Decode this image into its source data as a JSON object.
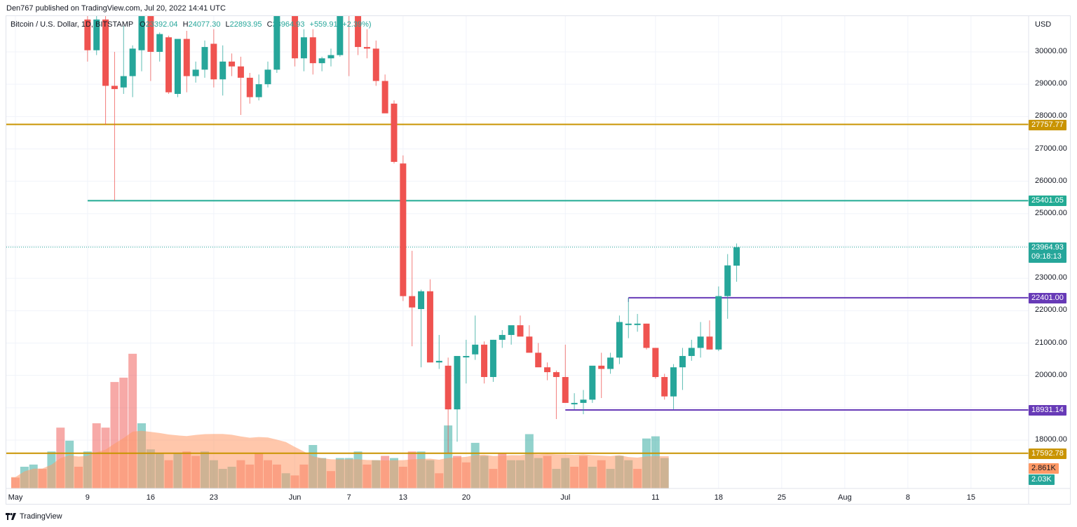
{
  "header": {
    "published": "Den767 published on TradingView.com, Jul 20, 2022 14:41 UTC"
  },
  "legend": {
    "symbol": "Bitcoin / U.S. Dollar, 1D, BITSTAMP",
    "open_label": "O",
    "open": "23392.04",
    "high_label": "H",
    "high": "24077.30",
    "low_label": "L",
    "low": "22893.95",
    "close_label": "C",
    "close": "23964.93",
    "change": "+559.91 (+2.39%)"
  },
  "price_axis": {
    "currency": "USD",
    "ticks": [
      "30000.00",
      "29000.00",
      "28000.00",
      "27000.00",
      "26000.00",
      "25000.00",
      "23000.00",
      "22000.00",
      "21000.00",
      "20000.00",
      "18000.00"
    ]
  },
  "tags": [
    {
      "label": "27757.77",
      "color": "#c99400",
      "price": 27757.77
    },
    {
      "label": "25401.05",
      "color": "#22ab94",
      "price": 25401.05
    },
    {
      "label": "23964.93",
      "color": "#26a69a",
      "price": 23964.93,
      "sub": "09:18:13"
    },
    {
      "label": "22401.00",
      "color": "#673ab7",
      "price": 22401.0
    },
    {
      "label": "18931.14",
      "color": "#673ab7",
      "price": 18931.14
    },
    {
      "label": "17592.78",
      "color": "#c99400",
      "price": 17592.78
    },
    {
      "label": "2.861K",
      "color": "#ff9966",
      "volume": true
    },
    {
      "label": "2.03K",
      "color": "#26a69a",
      "volume": true
    }
  ],
  "time_axis": {
    "labels": [
      "May",
      "9",
      "16",
      "23",
      "Jun",
      "7",
      "13",
      "20",
      "Jul",
      "11",
      "18",
      "25",
      "Aug",
      "8",
      "15"
    ]
  },
  "footer": {
    "brand": "TradingView"
  },
  "colors": {
    "up": "#26a69a",
    "down": "#ef5350",
    "vol_ma": "#ff9966"
  },
  "chart_data": {
    "type": "candlestick",
    "title": "Bitcoin / U.S. Dollar, 1D, BITSTAMP",
    "ylabel": "USD",
    "ylim": [
      17300,
      31500
    ],
    "x_start": "May 1, 2022",
    "horizontal_levels": [
      {
        "price": 27757.77,
        "color": "#c99400"
      },
      {
        "price": 25401.05,
        "color": "#22ab94"
      },
      {
        "price": 22401.0,
        "color": "#673ab7",
        "from": "Jul 8"
      },
      {
        "price": 18931.14,
        "color": "#673ab7",
        "from": "Jul 1"
      },
      {
        "price": 17592.78,
        "color": "#c99400"
      }
    ],
    "last_price": 23964.93,
    "countdown": "09:18:13",
    "ohlc": [
      [
        "May 9",
        31000,
        31500,
        29700,
        30050
      ],
      [
        "May 10",
        30050,
        32500,
        29900,
        31000
      ],
      [
        "May 11",
        31000,
        32100,
        27750,
        28950
      ],
      [
        "May 12",
        28950,
        30000,
        25400,
        28850
      ],
      [
        "May 13",
        28900,
        30800,
        28700,
        29250
      ],
      [
        "May 14",
        29250,
        30200,
        28600,
        30100
      ],
      [
        "May 15",
        30050,
        31900,
        29400,
        31300
      ],
      [
        "May 16",
        31300,
        31400,
        29100,
        30000
      ],
      [
        "May 17",
        30000,
        30600,
        29700,
        30550
      ],
      [
        "May 18",
        30450,
        30500,
        28700,
        28750
      ],
      [
        "May 19",
        28700,
        30200,
        28600,
        30400
      ],
      [
        "May 20",
        30400,
        30650,
        28750,
        29250
      ],
      [
        "May 21",
        29250,
        29700,
        29050,
        29450
      ],
      [
        "May 22",
        29450,
        30350,
        29200,
        30150
      ],
      [
        "May 23",
        30250,
        30700,
        28900,
        29150
      ],
      [
        "May 24",
        29150,
        30200,
        28650,
        29700
      ],
      [
        "May 25",
        29700,
        29950,
        29250,
        29550
      ],
      [
        "May 26",
        29550,
        29850,
        28050,
        29200
      ],
      [
        "May 27",
        29200,
        29350,
        28400,
        28600
      ],
      [
        "May 28",
        28600,
        29300,
        28500,
        29000
      ],
      [
        "May 29",
        29000,
        29700,
        28900,
        29450
      ],
      [
        "May 30",
        29450,
        32200,
        29350,
        31750
      ],
      [
        "May 31",
        31750,
        32350,
        31200,
        31750
      ],
      [
        "Jun 1",
        31750,
        31900,
        29550,
        29800
      ],
      [
        "Jun 2",
        29800,
        30700,
        29400,
        30450
      ],
      [
        "Jun 3",
        30450,
        30700,
        29300,
        29650
      ],
      [
        "Jun 4",
        29650,
        29850,
        29400,
        29800
      ],
      [
        "Jun 5",
        29800,
        30100,
        29550,
        29900
      ],
      [
        "Jun 6",
        29900,
        31700,
        29850,
        31350
      ],
      [
        "Jun 7",
        31350,
        31600,
        29250,
        31150
      ],
      [
        "Jun 8",
        31150,
        31400,
        29900,
        30150
      ],
      [
        "Jun 9",
        30150,
        30700,
        29800,
        30100
      ],
      [
        "Jun 10",
        30100,
        30350,
        28950,
        29100
      ],
      [
        "Jun 11",
        29100,
        29300,
        28200,
        28100
      ],
      [
        "Jun 12",
        28400,
        28500,
        26550,
        26600
      ],
      [
        "Jun 13",
        26550,
        26800,
        22300,
        22450
      ],
      [
        "Jun 14",
        22450,
        23850,
        20900,
        22100
      ],
      [
        "Jun 15",
        22050,
        22650,
        20250,
        22600
      ],
      [
        "Jun 16",
        22600,
        22970,
        20500,
        20400
      ],
      [
        "Jun 17",
        20400,
        21250,
        20200,
        20450
      ],
      [
        "Jun 18",
        20300,
        20550,
        17600,
        18950
      ],
      [
        "Jun 19",
        18950,
        20600,
        17950,
        20600
      ],
      [
        "Jun 20",
        20600,
        21100,
        19750,
        20600
      ],
      [
        "Jun 21",
        20650,
        21850,
        20480,
        20950
      ],
      [
        "Jun 22",
        20950,
        21050,
        19750,
        19950
      ],
      [
        "Jun 23",
        19950,
        21100,
        19800,
        21100
      ],
      [
        "Jun 24",
        21100,
        21400,
        20850,
        21250
      ],
      [
        "Jun 25",
        21250,
        21500,
        20950,
        21550
      ],
      [
        "Jun 26",
        21550,
        21850,
        21350,
        21200
      ],
      [
        "Jun 27",
        21200,
        21550,
        20850,
        20700
      ],
      [
        "Jun 28",
        20700,
        21000,
        20500,
        20250
      ],
      [
        "Jun 29",
        20250,
        20400,
        19850,
        20100
      ],
      [
        "Jun 30",
        20100,
        20150,
        18650,
        19950
      ],
      [
        "Jul 1",
        19950,
        20950,
        19150,
        19150
      ],
      [
        "Jul 2",
        19150,
        19450,
        18950,
        19150
      ],
      [
        "Jul 3",
        19150,
        19550,
        18800,
        19250
      ],
      [
        "Jul 4",
        19250,
        20250,
        19150,
        20300
      ],
      [
        "Jul 5",
        20300,
        20700,
        19300,
        20200
      ],
      [
        "Jul 6",
        20200,
        20700,
        20050,
        20550
      ],
      [
        "Jul 7",
        20550,
        21850,
        20350,
        21650
      ],
      [
        "Jul 8",
        21600,
        22400,
        21150,
        21600
      ],
      [
        "Jul 9",
        21600,
        21900,
        21350,
        21600
      ],
      [
        "Jul 10",
        21600,
        21600,
        20800,
        20850
      ],
      [
        "Jul 11",
        20850,
        20850,
        19900,
        19950
      ],
      [
        "Jul 12",
        19950,
        20050,
        19250,
        19350
      ],
      [
        "Jul 13",
        19350,
        20350,
        18950,
        20250
      ],
      [
        "Jul 14",
        20250,
        20850,
        19550,
        20600
      ],
      [
        "Jul 15",
        20600,
        21100,
        20450,
        20850
      ],
      [
        "Jul 16",
        20850,
        21650,
        20550,
        21200
      ],
      [
        "Jul 17",
        21200,
        21700,
        20800,
        20800
      ],
      [
        "Jul 18",
        20800,
        22750,
        20750,
        22450
      ],
      [
        "Jul 19",
        22450,
        23750,
        21750,
        23400
      ],
      [
        "Jul 20",
        23392.04,
        24077.3,
        22893.95,
        23964.93
      ]
    ],
    "volume": {
      "ma_last": "2.861K",
      "last": "2.03K",
      "bars_start": "May 1",
      "values": [
        0.5,
        1.0,
        1.1,
        0.9,
        1.7,
        2.8,
        2.2,
        1.0,
        1.7,
        3.0,
        2.8,
        4.9,
        5.1,
        6.2,
        3.0,
        1.8,
        1.6,
        1.3,
        1.6,
        1.7,
        1.5,
        1.7,
        1.3,
        0.9,
        1.0,
        1.3,
        1.1,
        1.6,
        1.3,
        1.1,
        0.7,
        0.6,
        1.1,
        2.0,
        1.4,
        0.8,
        1.4,
        1.4,
        1.7,
        1.1,
        1.3,
        1.5,
        1.4,
        1.0,
        1.7,
        1.7,
        1.3,
        0.7,
        2.9,
        1.5,
        1.2,
        2.1,
        1.5,
        0.9,
        1.6,
        1.3,
        1.3,
        2.5,
        1.4,
        1.5,
        0.9,
        1.4,
        1.0,
        1.5,
        1.0,
        1.3,
        0.9,
        1.5,
        1.3,
        0.9,
        2.3,
        2.4,
        1.4
      ],
      "up_days": [
        1,
        2,
        4,
        6,
        8,
        14,
        15,
        16,
        18,
        21,
        22,
        23,
        24,
        30,
        33,
        34,
        36,
        37,
        38,
        40,
        42,
        45,
        46,
        48,
        51,
        52,
        55,
        56,
        57,
        58,
        60,
        61,
        64,
        66,
        67,
        68,
        70,
        71,
        72
      ]
    }
  }
}
